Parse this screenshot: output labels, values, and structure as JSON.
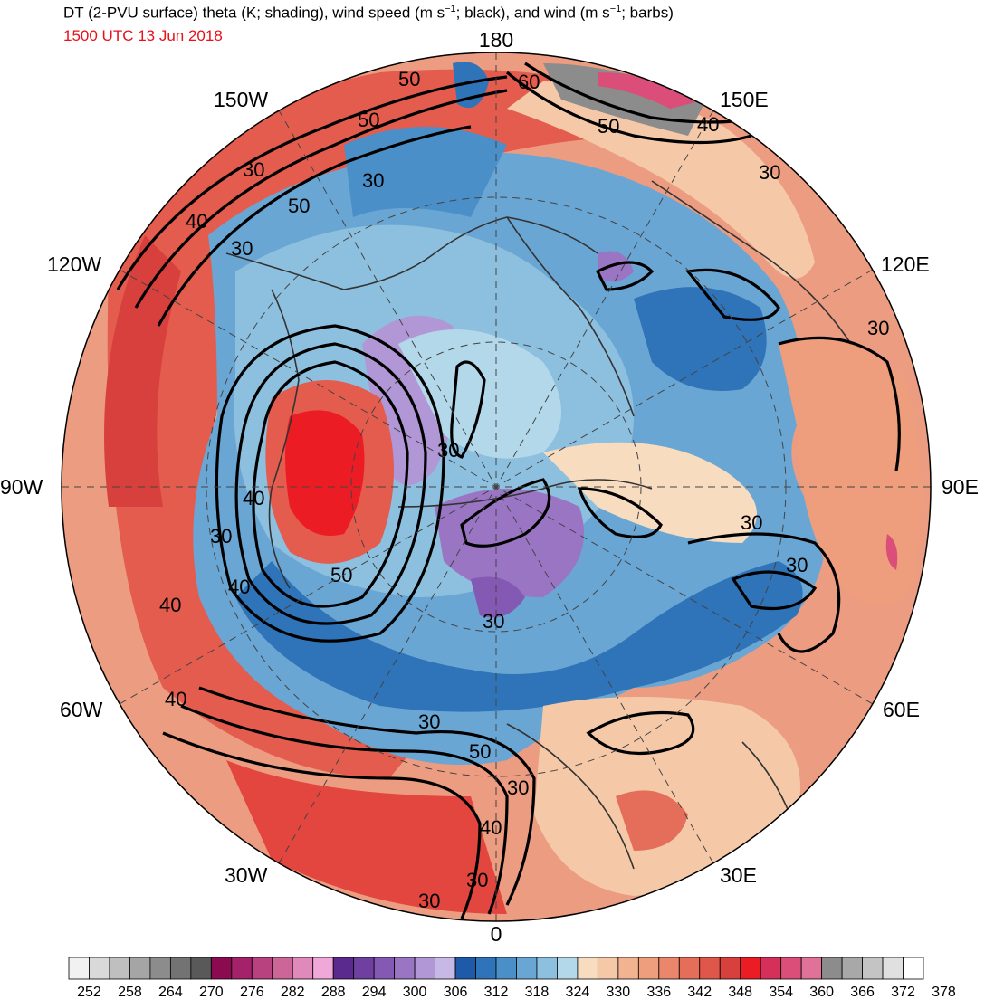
{
  "title": {
    "main_prefix": "DT (2-PVU surface) theta (K; shading), wind speed (m s",
    "sup1": "−1",
    "main_mid": "; black), and wind (m s",
    "sup2": "−1",
    "main_suffix": "; barbs)",
    "subtitle": "1500 UTC 13 Jun 2018",
    "subtitle_color": "#e8101a"
  },
  "map": {
    "projection": "north-polar-stereographic",
    "center": "North Pole",
    "bottom_meridian": "0",
    "longitude_labels": [
      {
        "text": "180",
        "deg": 180
      },
      {
        "text": "150E",
        "deg": 150
      },
      {
        "text": "120E",
        "deg": 120
      },
      {
        "text": "90E",
        "deg": 90
      },
      {
        "text": "60E",
        "deg": 60
      },
      {
        "text": "30E",
        "deg": 30
      },
      {
        "text": "0",
        "deg": 0
      },
      {
        "text": "30W",
        "deg": -30
      },
      {
        "text": "60W",
        "deg": -60
      },
      {
        "text": "90W",
        "deg": -90
      },
      {
        "text": "120W",
        "deg": -120
      },
      {
        "text": "150W",
        "deg": -150
      }
    ],
    "contour_labels": [
      "50",
      "60",
      "50",
      "40",
      "50",
      "30",
      "30",
      "50",
      "40",
      "30",
      "30",
      "40",
      "30",
      "50",
      "40",
      "30",
      "30",
      "30",
      "30",
      "40",
      "40",
      "30",
      "30",
      "50",
      "40",
      "30",
      "30",
      "30"
    ]
  },
  "colorbar": {
    "units": "K",
    "tick_labels": [
      "252",
      "258",
      "264",
      "270",
      "276",
      "282",
      "288",
      "294",
      "300",
      "306",
      "312",
      "318",
      "324",
      "330",
      "336",
      "342",
      "348",
      "354",
      "360",
      "366",
      "372",
      "378"
    ],
    "colors": [
      "#f1f1f1",
      "#d9d9d9",
      "#bfbfbf",
      "#a5a5a5",
      "#8c8c8c",
      "#737373",
      "#595959",
      "#8b0a50",
      "#a3226a",
      "#b8417f",
      "#cc6699",
      "#e089bb",
      "#f0a8d8",
      "#5b2a8f",
      "#7040a0",
      "#8459b3",
      "#9a75c3",
      "#b197d6",
      "#c8b8e6",
      "#1f5aa8",
      "#2f73b8",
      "#4a8fc7",
      "#6aa6d4",
      "#8dc0df",
      "#b3d8ea",
      "#f8dcc0",
      "#f5c9a8",
      "#f2b391",
      "#ee9d7d",
      "#ea866b",
      "#e56e5b",
      "#df564b",
      "#d8403e",
      "#ec1c24",
      "#d6305a",
      "#db4e7a",
      "#e0729a",
      "#8c8c8c",
      "#a8a8a8",
      "#c4c4c4",
      "#e0e0e0",
      "#ffffff"
    ]
  }
}
